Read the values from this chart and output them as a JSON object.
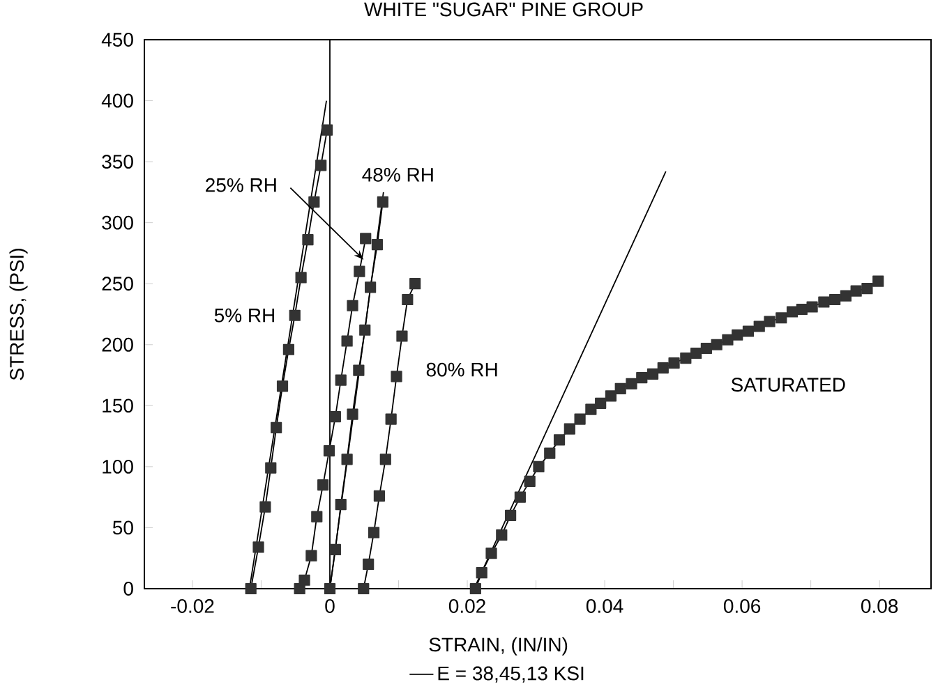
{
  "chart_data": {
    "type": "line",
    "title": "WHITE \"SUGAR\" PINE GROUP",
    "xlabel": "STRAIN, (IN/IN)",
    "ylabel": "STRESS, (PSI)",
    "xlim": [
      -0.027,
      0.0875
    ],
    "ylim": [
      0,
      450
    ],
    "xticks": [
      -0.02,
      {
        "value": -0.01,
        "label": null
      },
      0,
      {
        "value": 0.01,
        "label": null
      },
      0.02,
      {
        "value": 0.03,
        "label": null
      },
      0.04,
      {
        "value": 0.05,
        "label": null
      },
      0.06,
      {
        "value": 0.07,
        "label": null
      },
      0.08
    ],
    "yticks": [
      0,
      50,
      100,
      150,
      200,
      250,
      300,
      350,
      400,
      450
    ],
    "marker": "square",
    "line_style": "solid",
    "grid": false,
    "legend": "bottom",
    "ref_lines": [
      {
        "axis": "x",
        "value": 0,
        "color": "#000000"
      }
    ],
    "series": [
      {
        "name": "5% RH",
        "color": "#333333",
        "x": [
          -0.0115,
          -0.0104,
          -0.0094,
          -0.0086,
          -0.0078,
          -0.0069,
          -0.006,
          -0.0051,
          -0.0042,
          -0.0032,
          -0.0023,
          -0.0013,
          -0.0004
        ],
        "values": [
          0,
          34,
          67,
          99,
          132,
          166,
          196,
          224,
          255,
          286,
          317,
          347,
          376
        ]
      },
      {
        "name": "25% RH",
        "color": "#333333",
        "x": [
          -0.0044,
          -0.0037,
          -0.0027,
          -0.0019,
          -0.001,
          -0.0001,
          0.0008,
          0.0016,
          0.0025,
          0.0033,
          0.0043,
          0.0052
        ],
        "values": [
          0,
          7,
          27,
          59,
          85,
          113,
          141,
          171,
          203,
          232,
          260,
          287
        ]
      },
      {
        "name": "48% RH",
        "color": "#333333",
        "x": [
          0.0,
          0.0008,
          0.0016,
          0.0025,
          0.0033,
          0.0042,
          0.0051,
          0.0059,
          0.0069,
          0.0077
        ],
        "values": [
          0,
          32,
          69,
          106,
          143,
          179,
          212,
          247,
          282,
          317
        ]
      },
      {
        "name": "80% RH",
        "color": "#333333",
        "x": [
          0.0049,
          0.0056,
          0.0064,
          0.0072,
          0.0081,
          0.0089,
          0.0097,
          0.0105,
          0.0113,
          0.0124
        ],
        "values": [
          0,
          20,
          46,
          76,
          106,
          139,
          174,
          207,
          237,
          250
        ]
      },
      {
        "name": "SATURATED",
        "color": "#333333",
        "x": [
          0.0212,
          0.0221,
          0.0235,
          0.025,
          0.0263,
          0.0277,
          0.0291,
          0.0304,
          0.032,
          0.0334,
          0.0349,
          0.0364,
          0.038,
          0.0394,
          0.0409,
          0.0423,
          0.0439,
          0.0454,
          0.047,
          0.0485,
          0.0501,
          0.0518,
          0.0533,
          0.0548,
          0.0563,
          0.0579,
          0.0593,
          0.0609,
          0.0625,
          0.064,
          0.0657,
          0.0673,
          0.0687,
          0.0702,
          0.0719,
          0.0735,
          0.0751,
          0.0766,
          0.0782,
          0.0798
        ],
        "values": [
          0,
          13,
          29,
          44,
          60,
          75,
          88,
          100,
          111,
          122,
          131,
          139,
          147,
          152,
          158,
          164,
          168,
          173,
          176,
          181,
          185,
          189,
          193,
          197,
          200,
          204,
          208,
          211,
          215,
          219,
          222,
          227,
          229,
          231,
          235,
          237,
          240,
          244,
          246,
          252
        ]
      },
      {
        "name": "E = 38,45,13 KSI",
        "color": "#000000",
        "marker": "none",
        "x": [
          -0.0117,
          -0.0005,
          null,
          0.0,
          0.0078,
          null,
          0.021,
          0.0489
        ],
        "values": [
          0,
          400,
          null,
          0,
          325,
          null,
          0,
          342
        ]
      }
    ]
  }
}
